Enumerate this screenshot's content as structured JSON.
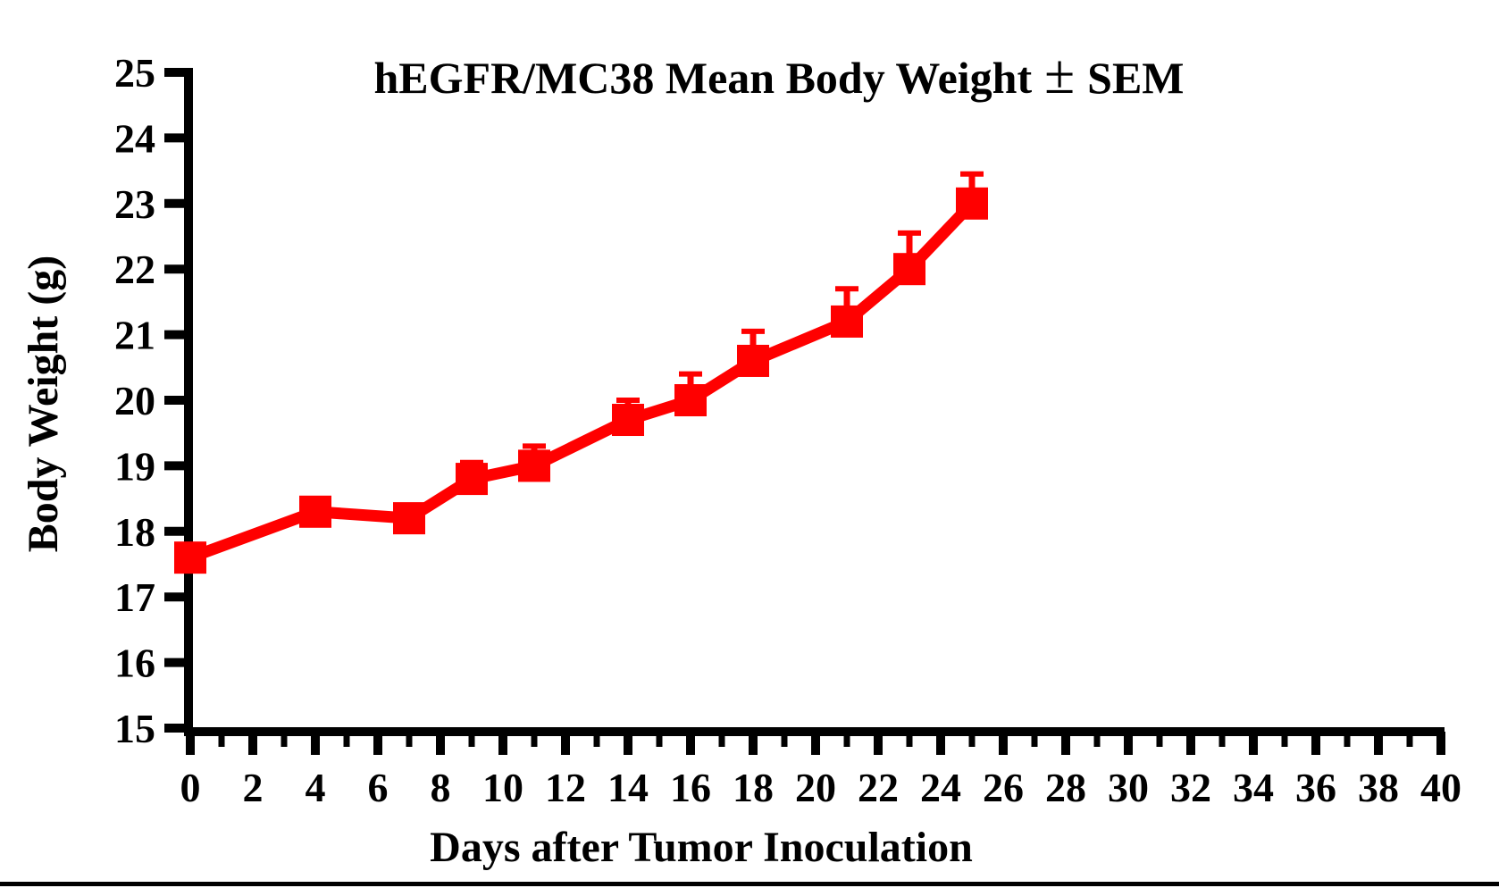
{
  "figure": {
    "title": {
      "before": "hEGFR/MC38 Mean Body Weight",
      "symbol": "±",
      "after": "SEM"
    },
    "x_axis_label": "Days after Tumor Inoculation",
    "y_axis_label": "Body Weight (g)"
  },
  "colors": {
    "series": "#FF0000",
    "axis": "#000000",
    "background": "#FFFFFF"
  },
  "chart_data": {
    "type": "line",
    "title": "hEGFR/MC38 Mean Body Weight ± SEM",
    "xlabel": "Days after Tumor Inoculation",
    "ylabel": "Body Weight (g)",
    "xlim": [
      0,
      40
    ],
    "ylim": [
      15,
      25
    ],
    "x_ticks": [
      0,
      2,
      4,
      6,
      8,
      10,
      12,
      14,
      16,
      18,
      20,
      22,
      24,
      26,
      28,
      30,
      32,
      34,
      36,
      38,
      40
    ],
    "x_minor_tick_step": 1,
    "y_ticks": [
      15,
      16,
      17,
      18,
      19,
      20,
      21,
      22,
      23,
      24,
      25
    ],
    "grid": false,
    "legend_position": "none",
    "error_bars": "SEM, upper side only",
    "series": [
      {
        "name": "hEGFR/MC38",
        "color": "#FF0000",
        "marker": "square",
        "x": [
          0,
          4,
          7,
          9,
          11,
          14,
          16,
          18,
          21,
          23,
          25
        ],
        "y": [
          17.6,
          18.3,
          18.2,
          18.8,
          19.0,
          19.7,
          20.0,
          20.6,
          21.2,
          22.0,
          23.0
        ],
        "sem_upper": [
          0.2,
          0,
          0,
          0.25,
          0.3,
          0.3,
          0.4,
          0.45,
          0.5,
          0.55,
          0.45
        ]
      }
    ]
  }
}
